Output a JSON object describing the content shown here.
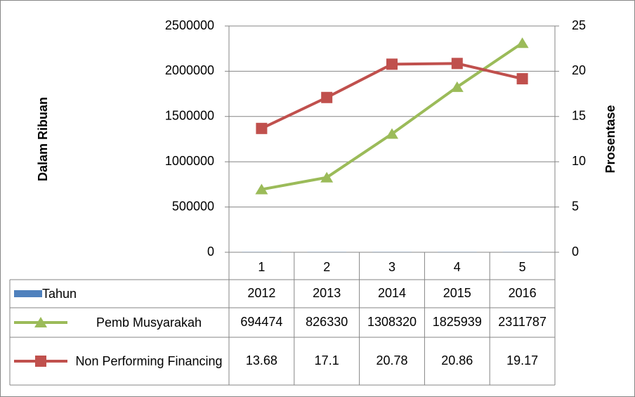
{
  "chart_data": {
    "type": "line",
    "ylabel": "Dalam Ribuan",
    "y2label": "Prosentase",
    "categories": [
      "1",
      "2",
      "3",
      "4",
      "5"
    ],
    "ylim": [
      0,
      2500000
    ],
    "yticks": [
      0,
      500000,
      1000000,
      1500000,
      2000000,
      2500000
    ],
    "y2lim": [
      0,
      25
    ],
    "y2ticks": [
      0,
      5,
      10,
      15,
      20,
      25
    ],
    "grid": true,
    "data_table": true,
    "series": [
      {
        "name": "Tahun",
        "type": "bar",
        "color": "#4f81bd",
        "values": [
          2012,
          2013,
          2014,
          2015,
          2016
        ]
      },
      {
        "name": "Pemb Musyarakah",
        "type": "line",
        "marker": "triangle",
        "color": "#9bbb59",
        "values": [
          694474,
          826330,
          1308320,
          1825939,
          2311787
        ]
      },
      {
        "name": "Non Performing Financing",
        "type": "line",
        "marker": "square",
        "color": "#c0504d",
        "axis": "y2",
        "values": [
          13.68,
          17.1,
          20.78,
          20.86,
          19.17
        ]
      }
    ]
  }
}
